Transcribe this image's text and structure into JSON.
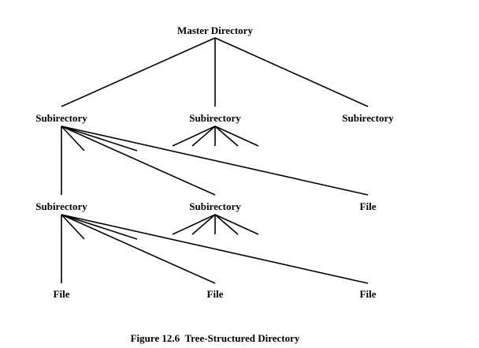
{
  "colors": {
    "background": "#ffffff",
    "ink": "#000000"
  },
  "tree": {
    "root": {
      "label": "Master Directory"
    },
    "level1": [
      {
        "label": "Subirectory"
      },
      {
        "label": "Subirectory"
      },
      {
        "label": "Subirectory"
      }
    ],
    "level2": [
      {
        "label": "Subirectory"
      },
      {
        "label": "Subirectory"
      },
      {
        "label": "File"
      }
    ],
    "level3": [
      {
        "label": "File"
      },
      {
        "label": "File"
      },
      {
        "label": "File"
      }
    ]
  },
  "caption": {
    "figure_number": "Figure 12.6",
    "title": "Tree-Structured Directory"
  }
}
